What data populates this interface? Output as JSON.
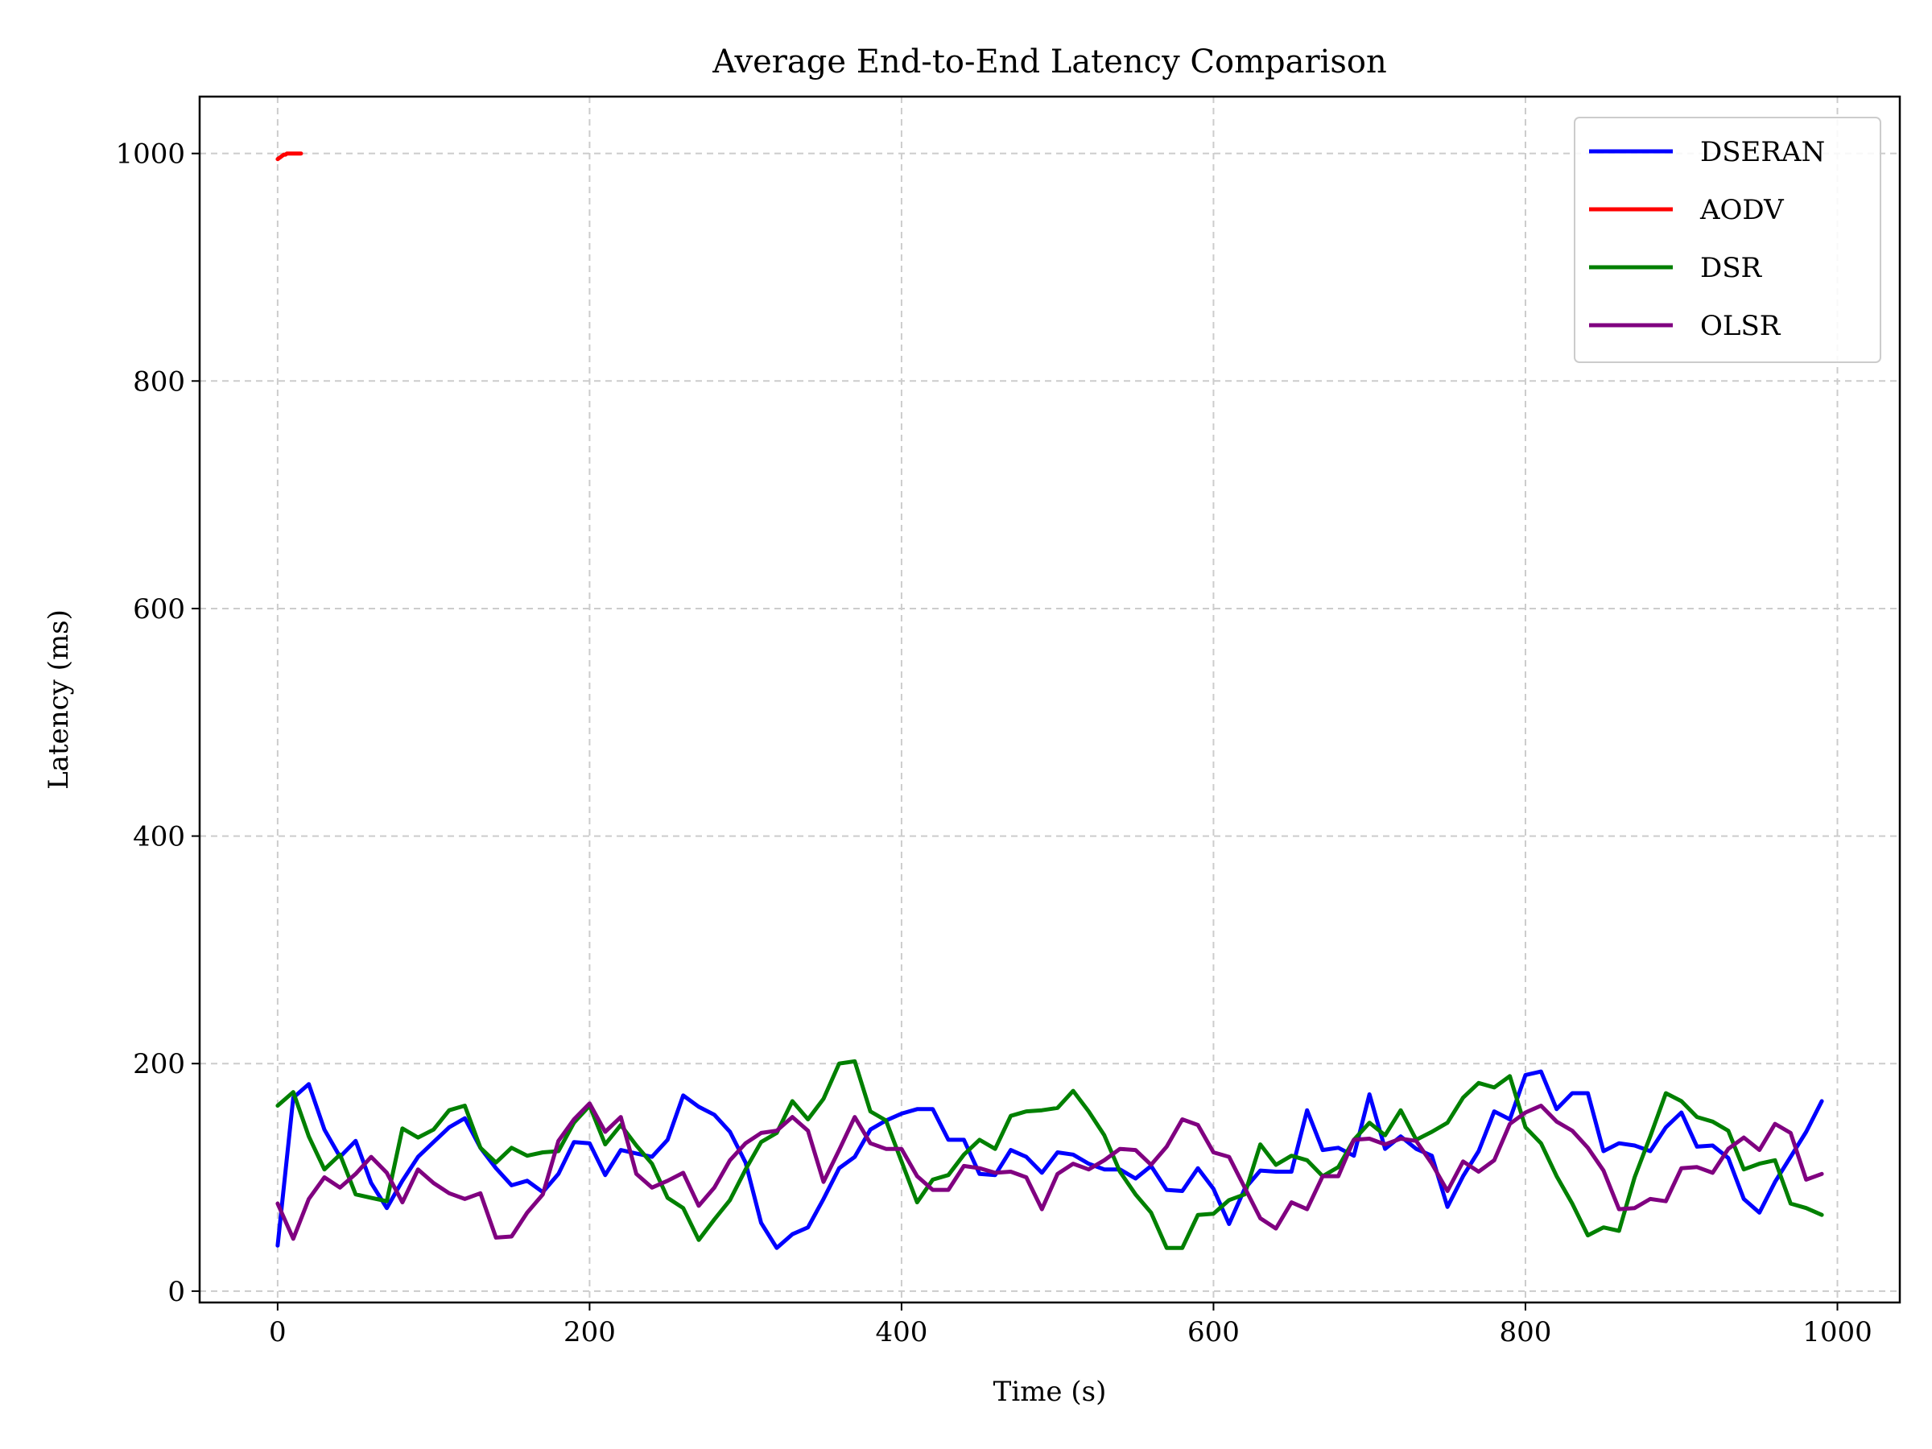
{
  "chart_data": {
    "type": "line",
    "title": "Average End-to-End Latency Comparison",
    "xlabel": "Time (s)",
    "ylabel": "Latency (ms)",
    "xlim": [
      -50,
      1040
    ],
    "ylim": [
      -10,
      1050
    ],
    "xticks": [
      0,
      200,
      400,
      600,
      800,
      1000
    ],
    "yticks": [
      0,
      200,
      400,
      600,
      800,
      1000
    ],
    "grid": true,
    "legend_position": "top-right",
    "series": [
      {
        "name": "DSERAN",
        "color": "#0000ff",
        "x": [
          0,
          10,
          20,
          30,
          40,
          50,
          60,
          70,
          80,
          90,
          100,
          110,
          120,
          130,
          140,
          150,
          160,
          170,
          180,
          190,
          200,
          210,
          220,
          230,
          240,
          250,
          260,
          270,
          280,
          290,
          300,
          310,
          320,
          330,
          340,
          350,
          360,
          370,
          380,
          390,
          400,
          410,
          420,
          430,
          440,
          450,
          460,
          470,
          480,
          490,
          500,
          510,
          520,
          530,
          540,
          550,
          560,
          570,
          580,
          590,
          600,
          610,
          620,
          630,
          640,
          650,
          660,
          670,
          680,
          690,
          700,
          710,
          720,
          730,
          740,
          750,
          760,
          770,
          780,
          790,
          800,
          810,
          820,
          830,
          840,
          850,
          860,
          870,
          880,
          890,
          900,
          910,
          920,
          930,
          940,
          950,
          960,
          970,
          980,
          990
        ],
        "values": [
          40,
          170,
          182,
          142,
          118,
          132,
          95,
          73,
          97,
          118,
          131,
          144,
          152,
          126,
          108,
          93,
          97,
          87,
          103,
          131,
          130,
          102,
          124,
          121,
          118,
          133,
          172,
          162,
          155,
          140,
          113,
          60,
          38,
          50,
          56,
          81,
          108,
          118,
          142,
          150,
          156,
          160,
          160,
          133,
          133,
          103,
          102,
          124,
          118,
          104,
          122,
          120,
          112,
          107,
          107,
          99,
          110,
          89,
          88,
          108,
          90,
          59,
          90,
          106,
          105,
          105,
          159,
          124,
          126,
          119,
          173,
          125,
          136,
          125,
          119,
          74,
          101,
          123,
          158,
          151,
          190,
          193,
          160,
          174,
          174,
          123,
          130,
          128,
          123,
          144,
          157,
          127,
          128,
          117,
          81,
          69,
          96,
          118,
          140,
          167
        ]
      },
      {
        "name": "AODV",
        "color": "#ff0000",
        "x": [
          0,
          1,
          2,
          3,
          4,
          5,
          6,
          7,
          8,
          9,
          10,
          11,
          12,
          13,
          14,
          15
        ],
        "values": [
          995,
          996,
          997,
          998,
          999,
          999,
          1000,
          1000,
          1000,
          1000,
          1000,
          1000,
          1000,
          1000,
          1000,
          1000
        ]
      },
      {
        "name": "DSR",
        "color": "#008000",
        "x": [
          0,
          10,
          20,
          30,
          40,
          50,
          60,
          70,
          80,
          90,
          100,
          110,
          120,
          130,
          140,
          150,
          160,
          170,
          180,
          190,
          200,
          210,
          220,
          230,
          240,
          250,
          260,
          270,
          280,
          290,
          300,
          310,
          320,
          330,
          340,
          350,
          360,
          370,
          380,
          390,
          400,
          410,
          420,
          430,
          440,
          450,
          460,
          470,
          480,
          490,
          500,
          510,
          520,
          530,
          540,
          550,
          560,
          570,
          580,
          590,
          600,
          610,
          620,
          630,
          640,
          650,
          660,
          670,
          680,
          690,
          700,
          710,
          720,
          730,
          740,
          750,
          760,
          770,
          780,
          790,
          800,
          810,
          820,
          830,
          840,
          850,
          860,
          870,
          880,
          890,
          900,
          910,
          920,
          930,
          940,
          950,
          960,
          970,
          980,
          990
        ],
        "values": [
          163,
          175,
          136,
          107,
          120,
          85,
          82,
          79,
          143,
          135,
          142,
          159,
          163,
          126,
          113,
          126,
          119,
          122,
          123,
          148,
          163,
          129,
          146,
          128,
          112,
          82,
          73,
          45,
          63,
          80,
          107,
          131,
          139,
          167,
          151,
          169,
          200,
          202,
          158,
          150,
          114,
          78,
          98,
          102,
          120,
          133,
          125,
          154,
          158,
          159,
          161,
          176,
          158,
          137,
          105,
          85,
          69,
          38,
          38,
          67,
          68,
          80,
          85,
          129,
          111,
          119,
          115,
          101,
          109,
          133,
          148,
          137,
          159,
          133,
          140,
          148,
          170,
          183,
          179,
          189,
          144,
          130,
          101,
          77,
          49,
          56,
          53,
          100,
          136,
          174,
          167,
          153,
          149,
          141,
          107,
          112,
          115,
          77,
          73,
          67
        ]
      },
      {
        "name": "OLSR",
        "color": "#800080",
        "x": [
          0,
          10,
          20,
          30,
          40,
          50,
          60,
          70,
          80,
          90,
          100,
          110,
          120,
          130,
          140,
          150,
          160,
          170,
          180,
          190,
          200,
          210,
          220,
          230,
          240,
          250,
          260,
          270,
          280,
          290,
          300,
          310,
          320,
          330,
          340,
          350,
          360,
          370,
          380,
          390,
          400,
          410,
          420,
          430,
          440,
          450,
          460,
          470,
          480,
          490,
          500,
          510,
          520,
          530,
          540,
          550,
          560,
          570,
          580,
          590,
          600,
          610,
          620,
          630,
          640,
          650,
          660,
          670,
          680,
          690,
          700,
          710,
          720,
          730,
          740,
          750,
          760,
          770,
          780,
          790,
          800,
          810,
          820,
          830,
          840,
          850,
          860,
          870,
          880,
          890,
          900,
          910,
          920,
          930,
          940,
          950,
          960,
          970,
          980,
          990
        ],
        "values": [
          77,
          46,
          81,
          100,
          91,
          103,
          118,
          104,
          78,
          107,
          95,
          86,
          81,
          86,
          47,
          48,
          69,
          85,
          132,
          151,
          165,
          140,
          153,
          103,
          91,
          97,
          104,
          75,
          91,
          115,
          130,
          139,
          141,
          153,
          141,
          96,
          124,
          153,
          130,
          125,
          125,
          101,
          89,
          89,
          110,
          108,
          104,
          105,
          100,
          72,
          103,
          112,
          107,
          115,
          125,
          124,
          111,
          127,
          151,
          146,
          122,
          118,
          91,
          64,
          55,
          78,
          72,
          101,
          101,
          133,
          134,
          129,
          134,
          132,
          112,
          88,
          114,
          105,
          115,
          147,
          157,
          163,
          149,
          141,
          126,
          106,
          72,
          73,
          81,
          79,
          108,
          109,
          104,
          125,
          135,
          124,
          147,
          139,
          98,
          103
        ]
      }
    ]
  }
}
